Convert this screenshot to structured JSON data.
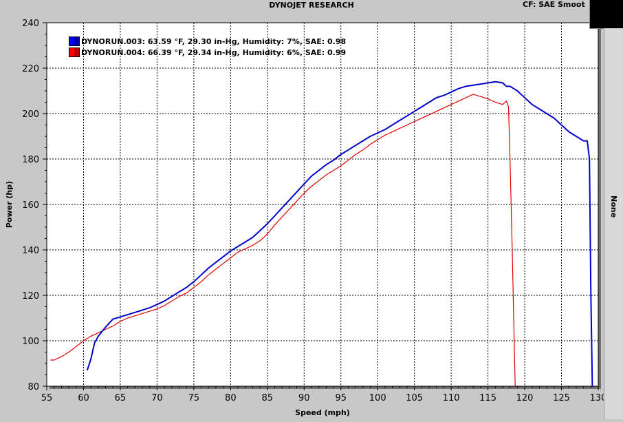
{
  "header": {
    "title": "DYNOJET RESEARCH",
    "cf_text": "CF: SAE  Smoot"
  },
  "side_panel": {
    "label": "None"
  },
  "chart_data": {
    "type": "line",
    "title": "",
    "xlabel": "Speed (mph)",
    "ylabel": "Power (hp)",
    "xlim": [
      55,
      130
    ],
    "ylim": [
      80,
      240
    ],
    "xticks": [
      55,
      60,
      65,
      70,
      75,
      80,
      85,
      90,
      95,
      100,
      105,
      110,
      115,
      120,
      125,
      130
    ],
    "yticks": [
      80,
      100,
      120,
      140,
      160,
      180,
      200,
      220,
      240
    ],
    "grid": true,
    "legend_position": "top-left",
    "series": [
      {
        "name": "DYNORUN.003: 63.59 °F, 29.30 in-Hg, Humidity: 7%, SAE: 0.98",
        "color": "#0000cc",
        "x": [
          60.5,
          61.0,
          61.5,
          62.0,
          62.5,
          63.0,
          64.0,
          65.0,
          66.0,
          67.0,
          68.0,
          69.0,
          70.0,
          71.0,
          72.0,
          73.0,
          74.0,
          75.0,
          76.0,
          77.0,
          78.0,
          79.0,
          80.0,
          81.0,
          82.0,
          83.0,
          84.0,
          85.0,
          86.0,
          87.0,
          88.0,
          89.0,
          90.0,
          91.0,
          92.0,
          93.0,
          94.0,
          95.0,
          96.0,
          97.0,
          98.0,
          99.0,
          100.0,
          101.0,
          102.0,
          103.0,
          104.0,
          105.0,
          106.0,
          107.0,
          108.0,
          109.0,
          110.0,
          111.0,
          112.0,
          113.0,
          114.0,
          115.0,
          116.0,
          117.0,
          117.5,
          118.0,
          119.0,
          120.0,
          121.0,
          122.0,
          123.0,
          124.0,
          125.0,
          126.0,
          127.0,
          128.0,
          128.5,
          128.8,
          129.0,
          129.2
        ],
        "values": [
          87,
          92,
          99,
          102,
          104,
          106,
          109.5,
          110.5,
          111.5,
          112.5,
          113.5,
          114.5,
          116,
          117.5,
          119.5,
          121.5,
          123.5,
          126,
          129,
          132,
          134.5,
          137,
          139.5,
          141.5,
          143.5,
          145.5,
          148.5,
          151.5,
          155,
          158.5,
          162,
          165.5,
          169,
          172.5,
          175,
          177.5,
          179.5,
          182,
          184,
          186,
          188,
          190,
          191.5,
          193,
          195,
          197,
          199,
          201,
          203,
          205,
          207,
          208,
          209.5,
          211,
          212,
          212.5,
          213,
          213.5,
          214,
          213.5,
          212,
          212,
          210,
          207,
          204,
          202,
          200,
          198,
          195,
          192,
          190,
          188,
          188,
          180,
          120,
          80
        ]
      },
      {
        "name": "DYNORUN.004: 66.39 °F, 29.34 in-Hg, Humidity: 6%, SAE: 0.99",
        "color": "#dd0000",
        "x": [
          55.5,
          56.0,
          57.0,
          58.0,
          59.0,
          60.0,
          61.0,
          62.0,
          63.0,
          64.0,
          65.0,
          66.0,
          67.0,
          68.0,
          69.0,
          70.0,
          71.0,
          72.0,
          73.0,
          74.0,
          75.0,
          76.0,
          77.0,
          78.0,
          79.0,
          80.0,
          81.0,
          82.0,
          83.0,
          84.0,
          85.0,
          86.0,
          87.0,
          88.0,
          89.0,
          90.0,
          91.0,
          92.0,
          93.0,
          94.0,
          95.0,
          96.0,
          97.0,
          98.0,
          99.0,
          100.0,
          101.0,
          102.0,
          103.0,
          104.0,
          105.0,
          106.0,
          107.0,
          108.0,
          109.0,
          110.0,
          111.0,
          112.0,
          113.0,
          114.0,
          115.0,
          116.0,
          117.0,
          117.5,
          117.8,
          118.0,
          118.3,
          118.7
        ],
        "values": [
          91.5,
          91.5,
          93,
          95,
          97.5,
          100,
          102,
          103.5,
          105,
          106.5,
          108.5,
          110,
          111,
          112,
          113,
          114,
          115.5,
          117.5,
          119.5,
          121,
          123.5,
          126,
          129,
          131.5,
          134,
          136.5,
          139,
          140.5,
          142,
          144,
          147,
          151,
          154.5,
          158,
          161.5,
          165,
          168,
          170.5,
          173,
          175,
          177,
          179.5,
          182,
          184,
          186.5,
          188.5,
          190.5,
          192,
          193.5,
          195,
          196.5,
          198,
          199.5,
          201,
          202.5,
          204,
          205.5,
          207,
          208.5,
          207.5,
          206.5,
          205,
          204,
          205.5,
          203,
          180,
          140,
          80
        ]
      }
    ]
  }
}
